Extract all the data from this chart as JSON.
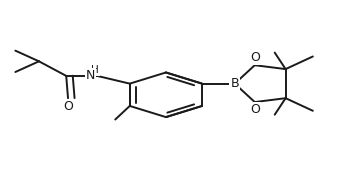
{
  "bg_color": "#ffffff",
  "line_color": "#1a1a1a",
  "line_width": 1.4,
  "fig_width": 3.5,
  "fig_height": 1.76,
  "dpi": 100,
  "xlim": [
    0.0,
    1.0
  ],
  "ylim": [
    0.0,
    1.0
  ],
  "font_size_atom": 9,
  "font_size_small": 7.5
}
